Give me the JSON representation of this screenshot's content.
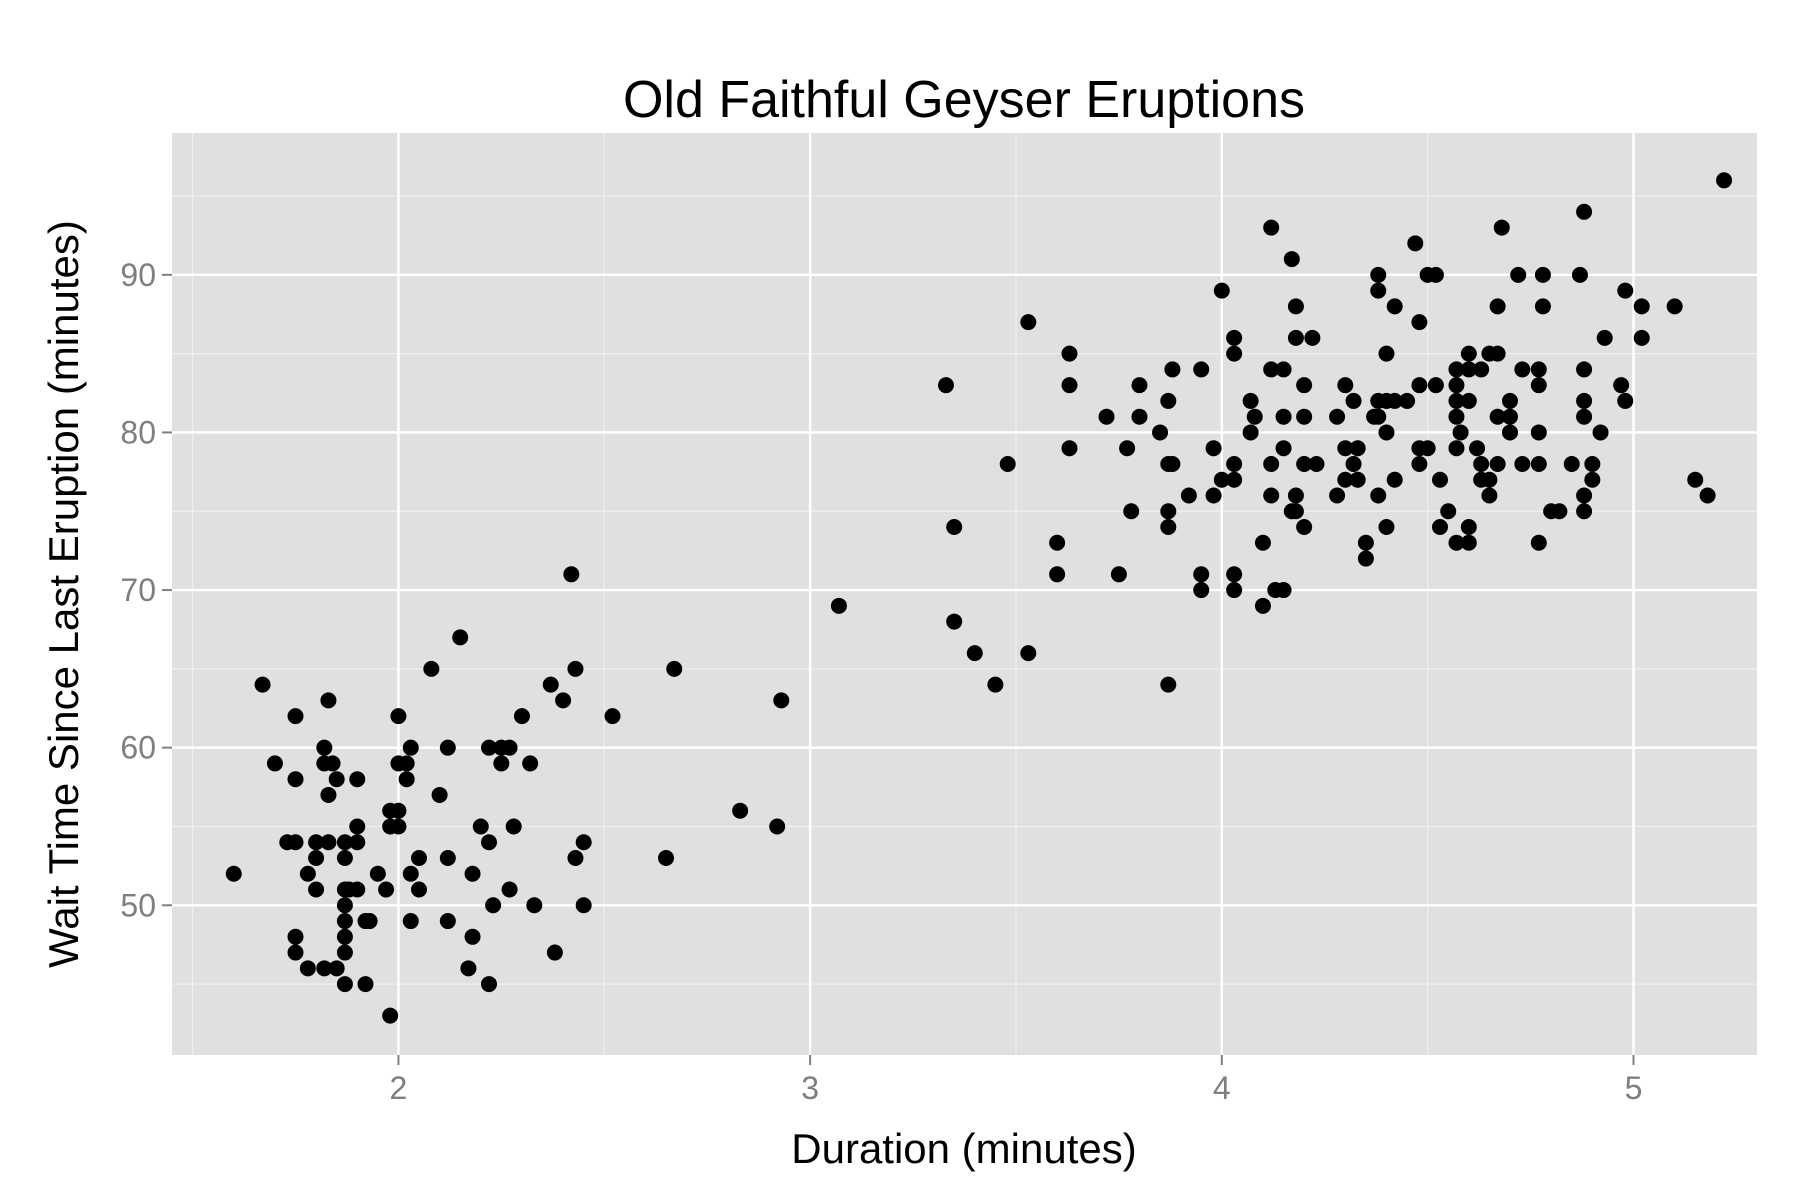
{
  "chart_data": {
    "type": "scatter",
    "title": "Old Faithful Geyser Eruptions",
    "xlabel": "Duration (minutes)",
    "ylabel": "Wait Time Since Last Eruption (minutes)",
    "xlim": [
      1.45,
      5.3
    ],
    "ylim": [
      40.5,
      99
    ],
    "x_ticks": [
      2,
      3,
      4,
      5
    ],
    "y_ticks": [
      50,
      60,
      70,
      80,
      90
    ],
    "x_tick_labels": [
      "2",
      "3",
      "4",
      "5"
    ],
    "y_tick_labels": [
      "50",
      "60",
      "70",
      "80",
      "90"
    ],
    "grid": true,
    "legend": "none",
    "colors": {
      "panel": "#e0e0e0",
      "grid_major": "#ffffff",
      "grid_minor": "#f0f0f0",
      "point": "#000000",
      "tick_text": "#7f7f7f",
      "background": "#ffffff"
    },
    "points": [
      [
        1.6,
        52
      ],
      [
        1.67,
        64
      ],
      [
        1.7,
        59
      ],
      [
        1.73,
        54
      ],
      [
        1.75,
        54
      ],
      [
        1.75,
        62
      ],
      [
        1.75,
        58
      ],
      [
        1.75,
        48
      ],
      [
        1.75,
        47
      ],
      [
        1.78,
        52
      ],
      [
        1.8,
        51
      ],
      [
        1.8,
        53
      ],
      [
        1.8,
        54
      ],
      [
        1.78,
        46
      ],
      [
        1.82,
        60
      ],
      [
        1.82,
        59
      ],
      [
        1.82,
        46
      ],
      [
        1.83,
        54
      ],
      [
        1.83,
        63
      ],
      [
        1.83,
        57
      ],
      [
        1.84,
        59
      ],
      [
        1.85,
        58
      ],
      [
        1.85,
        46
      ],
      [
        1.87,
        54
      ],
      [
        1.87,
        53
      ],
      [
        1.87,
        51
      ],
      [
        1.87,
        50
      ],
      [
        1.87,
        49
      ],
      [
        1.87,
        48
      ],
      [
        1.87,
        47
      ],
      [
        1.87,
        45
      ],
      [
        1.88,
        51
      ],
      [
        1.9,
        58
      ],
      [
        1.9,
        55
      ],
      [
        1.9,
        54
      ],
      [
        1.9,
        51
      ],
      [
        1.92,
        49
      ],
      [
        1.92,
        45
      ],
      [
        1.93,
        49
      ],
      [
        1.95,
        52
      ],
      [
        1.97,
        51
      ],
      [
        1.98,
        56
      ],
      [
        1.98,
        55
      ],
      [
        1.98,
        43
      ],
      [
        2.0,
        62
      ],
      [
        2.0,
        59
      ],
      [
        2.0,
        56
      ],
      [
        2.0,
        55
      ],
      [
        2.02,
        59
      ],
      [
        2.02,
        58
      ],
      [
        2.03,
        60
      ],
      [
        2.03,
        52
      ],
      [
        2.03,
        49
      ],
      [
        2.05,
        53
      ],
      [
        2.05,
        51
      ],
      [
        2.08,
        65
      ],
      [
        2.1,
        57
      ],
      [
        2.12,
        60
      ],
      [
        2.12,
        53
      ],
      [
        2.12,
        49
      ],
      [
        2.15,
        67
      ],
      [
        2.17,
        46
      ],
      [
        2.18,
        52
      ],
      [
        2.18,
        48
      ],
      [
        2.2,
        55
      ],
      [
        2.22,
        60
      ],
      [
        2.22,
        54
      ],
      [
        2.22,
        45
      ],
      [
        2.23,
        50
      ],
      [
        2.25,
        60
      ],
      [
        2.25,
        59
      ],
      [
        2.27,
        60
      ],
      [
        2.27,
        51
      ],
      [
        2.28,
        55
      ],
      [
        2.3,
        62
      ],
      [
        2.32,
        59
      ],
      [
        2.33,
        50
      ],
      [
        2.37,
        64
      ],
      [
        2.38,
        47
      ],
      [
        2.4,
        63
      ],
      [
        2.42,
        71
      ],
      [
        2.43,
        65
      ],
      [
        2.43,
        53
      ],
      [
        2.45,
        54
      ],
      [
        2.45,
        50
      ],
      [
        2.52,
        62
      ],
      [
        2.65,
        53
      ],
      [
        2.67,
        65
      ],
      [
        2.83,
        56
      ],
      [
        2.92,
        55
      ],
      [
        2.93,
        63
      ],
      [
        3.07,
        69
      ],
      [
        3.33,
        83
      ],
      [
        3.35,
        74
      ],
      [
        3.35,
        68
      ],
      [
        3.4,
        66
      ],
      [
        3.45,
        64
      ],
      [
        3.48,
        78
      ],
      [
        3.53,
        87
      ],
      [
        3.53,
        66
      ],
      [
        3.6,
        73
      ],
      [
        3.6,
        71
      ],
      [
        3.63,
        85
      ],
      [
        3.63,
        83
      ],
      [
        3.63,
        79
      ],
      [
        3.72,
        81
      ],
      [
        3.75,
        71
      ],
      [
        3.77,
        79
      ],
      [
        3.78,
        75
      ],
      [
        3.8,
        83
      ],
      [
        3.8,
        81
      ],
      [
        3.85,
        80
      ],
      [
        3.87,
        82
      ],
      [
        3.87,
        78
      ],
      [
        3.87,
        75
      ],
      [
        3.87,
        74
      ],
      [
        3.87,
        64
      ],
      [
        3.88,
        84
      ],
      [
        3.88,
        78
      ],
      [
        3.92,
        76
      ],
      [
        3.95,
        84
      ],
      [
        3.95,
        71
      ],
      [
        3.95,
        70
      ],
      [
        3.98,
        79
      ],
      [
        3.98,
        76
      ],
      [
        4.0,
        89
      ],
      [
        4.0,
        77
      ],
      [
        4.03,
        86
      ],
      [
        4.03,
        85
      ],
      [
        4.03,
        78
      ],
      [
        4.03,
        77
      ],
      [
        4.03,
        71
      ],
      [
        4.03,
        70
      ],
      [
        4.07,
        82
      ],
      [
        4.07,
        80
      ],
      [
        4.08,
        81
      ],
      [
        4.1,
        73
      ],
      [
        4.1,
        69
      ],
      [
        4.12,
        93
      ],
      [
        4.12,
        84
      ],
      [
        4.12,
        78
      ],
      [
        4.12,
        76
      ],
      [
        4.13,
        70
      ],
      [
        4.15,
        84
      ],
      [
        4.15,
        81
      ],
      [
        4.15,
        79
      ],
      [
        4.15,
        70
      ],
      [
        4.17,
        91
      ],
      [
        4.17,
        75
      ],
      [
        4.18,
        88
      ],
      [
        4.18,
        86
      ],
      [
        4.18,
        76
      ],
      [
        4.18,
        75
      ],
      [
        4.2,
        83
      ],
      [
        4.2,
        81
      ],
      [
        4.2,
        78
      ],
      [
        4.2,
        74
      ],
      [
        4.22,
        86
      ],
      [
        4.23,
        78
      ],
      [
        4.28,
        81
      ],
      [
        4.28,
        76
      ],
      [
        4.3,
        83
      ],
      [
        4.3,
        79
      ],
      [
        4.3,
        77
      ],
      [
        4.32,
        82
      ],
      [
        4.32,
        78
      ],
      [
        4.33,
        79
      ],
      [
        4.33,
        77
      ],
      [
        4.35,
        73
      ],
      [
        4.35,
        72
      ],
      [
        4.37,
        81
      ],
      [
        4.38,
        90
      ],
      [
        4.38,
        89
      ],
      [
        4.38,
        82
      ],
      [
        4.38,
        81
      ],
      [
        4.38,
        76
      ],
      [
        4.4,
        85
      ],
      [
        4.4,
        82
      ],
      [
        4.4,
        80
      ],
      [
        4.4,
        74
      ],
      [
        4.42,
        88
      ],
      [
        4.42,
        82
      ],
      [
        4.42,
        77
      ],
      [
        4.45,
        82
      ],
      [
        4.47,
        92
      ],
      [
        4.48,
        87
      ],
      [
        4.48,
        83
      ],
      [
        4.48,
        79
      ],
      [
        4.48,
        78
      ],
      [
        4.5,
        90
      ],
      [
        4.5,
        79
      ],
      [
        4.52,
        90
      ],
      [
        4.52,
        83
      ],
      [
        4.53,
        77
      ],
      [
        4.53,
        74
      ],
      [
        4.55,
        75
      ],
      [
        4.57,
        84
      ],
      [
        4.57,
        83
      ],
      [
        4.57,
        82
      ],
      [
        4.57,
        81
      ],
      [
        4.57,
        79
      ],
      [
        4.57,
        73
      ],
      [
        4.58,
        80
      ],
      [
        4.6,
        85
      ],
      [
        4.6,
        84
      ],
      [
        4.6,
        82
      ],
      [
        4.6,
        74
      ],
      [
        4.6,
        73
      ],
      [
        4.62,
        79
      ],
      [
        4.63,
        84
      ],
      [
        4.63,
        78
      ],
      [
        4.63,
        77
      ],
      [
        4.65,
        85
      ],
      [
        4.65,
        77
      ],
      [
        4.65,
        76
      ],
      [
        4.67,
        88
      ],
      [
        4.67,
        85
      ],
      [
        4.67,
        81
      ],
      [
        4.67,
        78
      ],
      [
        4.68,
        93
      ],
      [
        4.7,
        82
      ],
      [
        4.7,
        81
      ],
      [
        4.7,
        80
      ],
      [
        4.72,
        90
      ],
      [
        4.73,
        84
      ],
      [
        4.73,
        78
      ],
      [
        4.77,
        84
      ],
      [
        4.77,
        83
      ],
      [
        4.77,
        80
      ],
      [
        4.77,
        78
      ],
      [
        4.77,
        73
      ],
      [
        4.78,
        88
      ],
      [
        4.78,
        90
      ],
      [
        4.8,
        75
      ],
      [
        4.82,
        75
      ],
      [
        4.85,
        78
      ],
      [
        4.87,
        90
      ],
      [
        4.88,
        84
      ],
      [
        4.88,
        82
      ],
      [
        4.88,
        81
      ],
      [
        4.88,
        76
      ],
      [
        4.88,
        75
      ],
      [
        4.88,
        94
      ],
      [
        4.9,
        78
      ],
      [
        4.9,
        77
      ],
      [
        4.92,
        80
      ],
      [
        4.93,
        86
      ],
      [
        4.97,
        83
      ],
      [
        4.98,
        89
      ],
      [
        4.98,
        82
      ],
      [
        5.02,
        88
      ],
      [
        5.02,
        86
      ],
      [
        5.1,
        88
      ],
      [
        5.15,
        77
      ],
      [
        5.18,
        76
      ],
      [
        5.22,
        96
      ]
    ]
  }
}
